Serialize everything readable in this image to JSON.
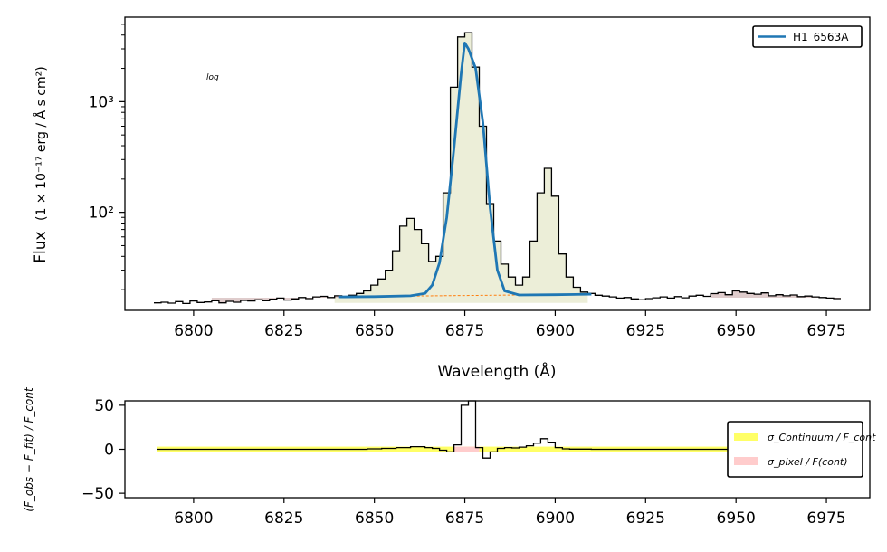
{
  "chart_data": [
    {
      "type": "line",
      "title": "",
      "xlabel": "Wavelength (Å)",
      "ylabel": "Flux",
      "ylabel_units": "(1 × 10⁻¹⁷ erg / Å s cm²)",
      "yscale": "log",
      "xlim": [
        6781,
        6987
      ],
      "ylim": [
        13,
        5800
      ],
      "xticks": [
        6800,
        6825,
        6850,
        6875,
        6900,
        6925,
        6950,
        6975
      ],
      "xtick_labels": [
        "6800",
        "6825",
        "6850",
        "6875",
        "6900",
        "6925",
        "6950",
        "6975"
      ],
      "yticks": [
        100,
        1000
      ],
      "ytick_labels": [
        "10²",
        "10³"
      ],
      "annotation": "log",
      "legend": {
        "placement": "top-right",
        "entries": [
          "H1_6563A"
        ]
      },
      "series": [
        {
          "name": "",
          "style": "step",
          "color": "#000000",
          "x": [
            6790,
            6792,
            6794,
            6796,
            6798,
            6800,
            6802,
            6804,
            6806,
            6808,
            6810,
            6812,
            6814,
            6816,
            6818,
            6820,
            6822,
            6824,
            6826,
            6828,
            6830,
            6832,
            6834,
            6836,
            6838,
            6840,
            6842,
            6844,
            6846,
            6848,
            6850,
            6852,
            6854,
            6856,
            6858,
            6860,
            6862,
            6864,
            6866,
            6868,
            6870,
            6872,
            6874,
            6876,
            6878,
            6880,
            6882,
            6884,
            6886,
            6888,
            6890,
            6892,
            6894,
            6896,
            6898,
            6900,
            6902,
            6904,
            6906,
            6908,
            6910,
            6912,
            6914,
            6916,
            6918,
            6920,
            6922,
            6924,
            6926,
            6928,
            6930,
            6932,
            6934,
            6936,
            6938,
            6940,
            6942,
            6944,
            6946,
            6948,
            6950,
            6952,
            6954,
            6956,
            6958,
            6960,
            6962,
            6964,
            6966,
            6968,
            6970,
            6972,
            6974,
            6976,
            6978
          ],
          "y": [
            15.2,
            15.4,
            15.1,
            15.6,
            15.0,
            15.8,
            15.3,
            15.5,
            15.9,
            15.2,
            15.7,
            15.4,
            16.0,
            15.8,
            16.2,
            15.9,
            16.4,
            16.8,
            16.1,
            16.5,
            17.0,
            16.6,
            17.2,
            17.4,
            17.0,
            17.6,
            17.2,
            17.8,
            18.5,
            19.5,
            22,
            25,
            30,
            45,
            75,
            88,
            70,
            52,
            36,
            40,
            150,
            1350,
            3850,
            4200,
            2050,
            600,
            120,
            55,
            34,
            26,
            22,
            26,
            55,
            150,
            250,
            140,
            42,
            26,
            21,
            19,
            18.5,
            17.8,
            17.5,
            17.2,
            16.8,
            17.0,
            16.5,
            16.2,
            16.6,
            16.9,
            17.2,
            16.8,
            17.3,
            16.9,
            17.5,
            17.8,
            17.4,
            18.4,
            18.8,
            18.0,
            19.5,
            19.0,
            18.5,
            18.2,
            18.7,
            17.6,
            18.0,
            17.6,
            17.9,
            17.3,
            17.5,
            17.2,
            17.0,
            16.8,
            16.6
          ]
        },
        {
          "name": "H1_6563A",
          "style": "line",
          "color": "#1f77b4",
          "x": [
            6840,
            6850,
            6860,
            6864,
            6866,
            6868,
            6870,
            6872,
            6874,
            6875,
            6876,
            6878,
            6880,
            6882,
            6884,
            6886,
            6890,
            6900,
            6910
          ],
          "y": [
            17.2,
            17.3,
            17.6,
            18.5,
            22,
            35,
            90,
            380,
            1800,
            3400,
            3000,
            2000,
            650,
            110,
            30,
            19.5,
            17.9,
            18.0,
            18.2
          ]
        }
      ],
      "shaded_regions": [
        {
          "kind": "line region",
          "x": [
            6840,
            6909
          ],
          "color": "#eceed8"
        },
        {
          "kind": "continuum band",
          "x": [
            6805,
            6843
          ],
          "color": "#dfcccc"
        },
        {
          "kind": "continuum band",
          "x": [
            6944,
            6978
          ],
          "color": "#dfcccc"
        }
      ]
    },
    {
      "type": "line",
      "title": "",
      "xlabel": "",
      "ylabel": "(F_obs − F_fit) / F_cont",
      "xlim": [
        6781,
        6987
      ],
      "ylim": [
        -55,
        55
      ],
      "xticks": [
        6800,
        6825,
        6850,
        6875,
        6900,
        6925,
        6950,
        6975
      ],
      "xtick_labels": [
        "6800",
        "6825",
        "6850",
        "6875",
        "6900",
        "6925",
        "6950",
        "6975"
      ],
      "yticks": [
        -50,
        0,
        50
      ],
      "ytick_labels": [
        "−50",
        "0",
        "50"
      ],
      "legend": {
        "placement": "right",
        "entries": [
          "σ_Continuum / F_cont",
          "σ_pixel / F(cont)"
        ],
        "colors": [
          "#ffff66",
          "#ffcccc"
        ]
      },
      "series": [
        {
          "name": "",
          "style": "step",
          "color": "#000000",
          "x": [
            6790,
            6800,
            6810,
            6820,
            6830,
            6840,
            6848,
            6852,
            6856,
            6860,
            6864,
            6866,
            6868,
            6870,
            6872,
            6874,
            6876,
            6878,
            6880,
            6882,
            6884,
            6886,
            6888,
            6890,
            6892,
            6894,
            6896,
            6898,
            6900,
            6902,
            6904,
            6910,
            6920,
            6940,
            6960,
            6978
          ],
          "y": [
            0,
            0,
            0,
            0,
            0,
            0,
            0.5,
            1.0,
            2.0,
            3.0,
            2.0,
            1.0,
            -1.0,
            -3.0,
            5.0,
            50.0,
            60.0,
            2.0,
            -10.0,
            -3.0,
            1.0,
            2.0,
            1.5,
            2.5,
            4.0,
            7.0,
            12.0,
            8.0,
            2.0,
            0.5,
            0.2,
            0,
            0,
            0,
            0,
            0
          ]
        }
      ],
      "bands": [
        {
          "name": "σ_Continuum / F_cont",
          "x": [
            6790,
            6978
          ],
          "half_height": 3.0,
          "color": "#ffff66"
        },
        {
          "name": "σ_pixel / F(cont)",
          "x": [
            6872,
            6879
          ],
          "half_height": 3.0,
          "color": "#ffcccc"
        }
      ]
    }
  ],
  "labels": {
    "legend_top": "H1_6563A",
    "annotation": "log",
    "ylabel_flux_word": "Flux",
    "ylabel_flux_units": "(1 × 10⁻¹⁷ erg / Å s cm²)",
    "ylabel_residual": "(F_obs − F_fit) / F_cont",
    "legend_bottom_1": "σ_Continuum / F_cont",
    "legend_bottom_2": "σ_pixel / F(cont)"
  }
}
